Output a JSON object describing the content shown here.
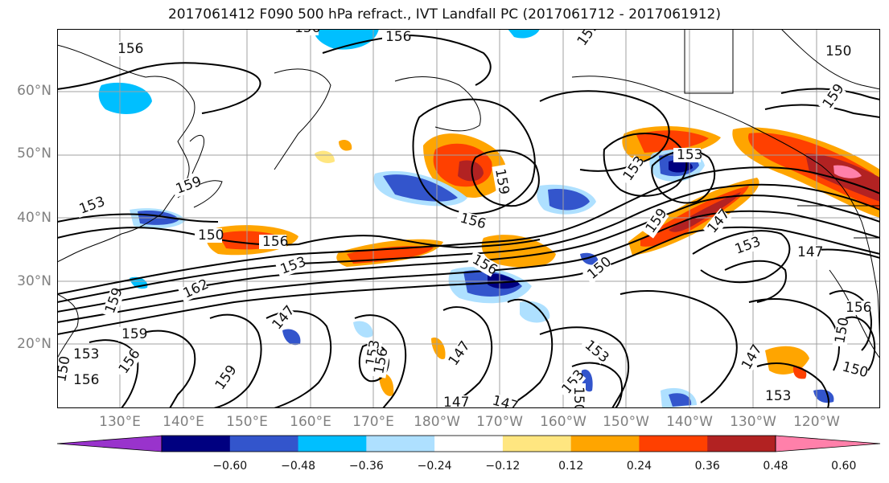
{
  "title": "2017061412 F090 500 hPa refract., IVT Landfall PC (2017061712 - 2017061912)",
  "colors": {
    "purple": "#9933cc",
    "navy": "#000080",
    "royalblue": "#3355cc",
    "deepsky": "#00bfff",
    "lightblue": "#aee0ff",
    "white": "#ffffff",
    "khaki": "#ffe680",
    "orange": "#ffa500",
    "orangered": "#ff4000",
    "firebrick": "#b22222",
    "pink": "#ff80aa"
  },
  "axes": {
    "lat_labels": [
      "60°N",
      "50°N",
      "40°N",
      "30°N",
      "20°N"
    ],
    "lon_labels": [
      "130°E",
      "140°E",
      "150°E",
      "160°E",
      "170°E",
      "180°W",
      "170°W",
      "160°W",
      "150°W",
      "140°W",
      "130°W",
      "120°W"
    ]
  },
  "contour_labels": [
    "156",
    "156",
    "159",
    "150",
    "159",
    "159",
    "153",
    "153",
    "159",
    "147",
    "153",
    "147",
    "156",
    "150",
    "156",
    "153",
    "156",
    "162",
    "150",
    "147",
    "153",
    "159",
    "156",
    "150",
    "153",
    "159",
    "159",
    "156",
    "153",
    "147",
    "150",
    "153",
    "147",
    "156",
    "150",
    "150",
    "147",
    "153",
    "159",
    "153",
    "156",
    "156",
    "147"
  ],
  "colorbar": {
    "ticks": [
      "−0.60",
      "−0.48",
      "−0.36",
      "−0.24",
      "−0.12",
      "0.12",
      "0.24",
      "0.36",
      "0.48",
      "0.60"
    ],
    "colors": [
      "#9933cc",
      "#000080",
      "#3355cc",
      "#00bfff",
      "#aee0ff",
      "#ffffff",
      "#ffe680",
      "#ffa500",
      "#ff4000",
      "#b22222",
      "#ff80aa"
    ]
  }
}
